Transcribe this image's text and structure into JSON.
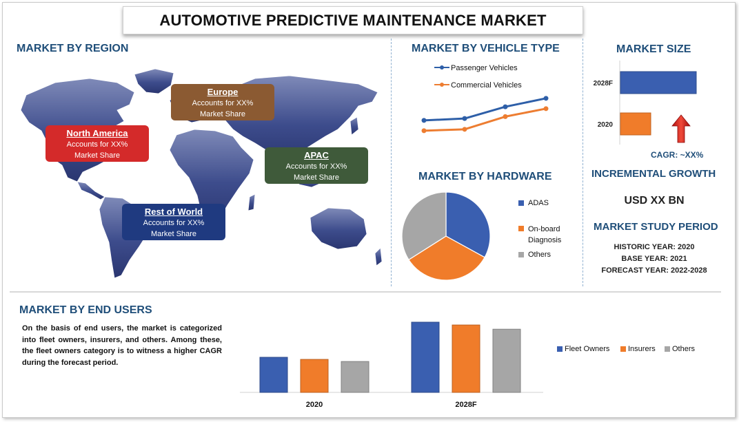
{
  "title": "AUTOMOTIVE PREDICTIVE MAINTENANCE MARKET",
  "sections": {
    "region": "MARKET BY REGION",
    "vehicle": "MARKET BY  VEHICLE TYPE",
    "size": "MARKET SIZE",
    "hardware": "MARKET BY HARDWARE",
    "incremental": "INCREMENTAL GROWTH",
    "study": "MARKET STUDY PERIOD",
    "endusers": "MARKET BY END USERS"
  },
  "regions": [
    {
      "name": "North America",
      "line1": "Accounts for XX%",
      "line2": "Market Share",
      "color": "#d42a2a"
    },
    {
      "name": "Europe",
      "line1": "Accounts for XX%",
      "line2": "Market Share",
      "color": "#8b5a32"
    },
    {
      "name": "APAC",
      "line1": "Accounts for XX%",
      "line2": "Market Share",
      "color": "#3f5a3a"
    },
    {
      "name": "Rest of World",
      "line1": "Accounts for XX%",
      "line2": "Market Share",
      "color": "#1f3a80"
    }
  ],
  "incremental_value": "USD XX BN",
  "study_period": {
    "historic": "HISTORIC YEAR: 2020",
    "base": "BASE YEAR: 2021",
    "forecast": "FORECAST YEAR: 2022-2028"
  },
  "end_users_text": "On the basis of end users, the market is categorized into fleet owners, insurers, and others. Among these, the fleet owners category is to witness a higher CAGR during the forecast period.",
  "colors": {
    "blue": "#3a5fb0",
    "orange": "#f07c2a",
    "gray": "#a6a6a6",
    "title": "#1f4e79"
  },
  "icons": {
    "map": "world-map-icon",
    "growth": "arrow-up-icon"
  },
  "chart_data": [
    {
      "type": "line",
      "title": "MARKET BY  VEHICLE TYPE",
      "x": [
        1,
        2,
        3,
        4
      ],
      "series": [
        {
          "name": "Passenger Vehicles",
          "values": [
            53,
            57,
            82,
            100
          ],
          "color": "#2e5fa8"
        },
        {
          "name": "Commercial Vehicles",
          "values": [
            31,
            34,
            61,
            78
          ],
          "color": "#ed7d31"
        }
      ],
      "ylim": [
        0,
        110
      ],
      "legend": "top"
    },
    {
      "type": "bar",
      "orientation": "horizontal",
      "title": "MARKET SIZE",
      "categories": [
        "2028F",
        "2020"
      ],
      "values": [
        100,
        40
      ],
      "colors": [
        "#3a5fb0",
        "#f07c2a"
      ],
      "cagr": "CAGR:  ~XX%"
    },
    {
      "type": "pie",
      "title": "MARKET BY HARDWARE",
      "labels": [
        "ADAS",
        "On-board Diagnosis",
        "Others"
      ],
      "values": [
        33,
        33,
        34
      ],
      "colors": [
        "#3a5fb0",
        "#f07c2a",
        "#a6a6a6"
      ],
      "legend": "right"
    },
    {
      "type": "bar",
      "title": "MARKET BY END USERS",
      "categories": [
        "2020",
        "2028F"
      ],
      "series": [
        {
          "name": "Fleet Owners",
          "values": [
            50,
            100
          ],
          "color": "#3a5fb0"
        },
        {
          "name": "Insurers",
          "values": [
            47,
            96
          ],
          "color": "#f07c2a"
        },
        {
          "name": "Others",
          "values": [
            44,
            90
          ],
          "color": "#a6a6a6"
        }
      ],
      "legend": "right"
    }
  ]
}
